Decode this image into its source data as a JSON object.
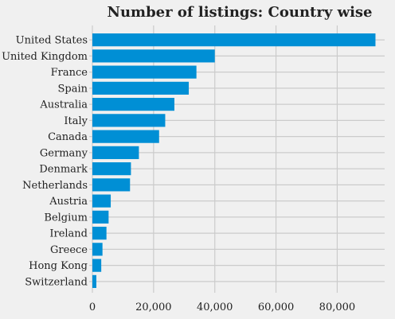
{
  "chart_data": {
    "type": "bar",
    "orientation": "horizontal",
    "title": "Number of listings: Country wise",
    "xlabel": "",
    "ylabel": "",
    "categories": [
      "United States",
      "United Kingdom",
      "France",
      "Spain",
      "Australia",
      "Italy",
      "Canada",
      "Germany",
      "Denmark",
      "Netherlands",
      "Austria",
      "Belgium",
      "Ireland",
      "Greece",
      "Hong Kong",
      "Switzerland"
    ],
    "values": [
      92500,
      40000,
      34000,
      31500,
      26800,
      23800,
      21800,
      15200,
      12600,
      12300,
      6000,
      5300,
      4600,
      3300,
      2900,
      1300
    ],
    "xlim": [
      0,
      95500
    ],
    "xticks": [
      0,
      20000,
      40000,
      60000,
      80000
    ],
    "xtick_labels": [
      "0",
      "20,000",
      "40,000",
      "60,000",
      "80,000"
    ],
    "grid": true,
    "legend": "none",
    "bar_color": "#008fd5",
    "grid_color": "#cbcbcb",
    "background_color": "#f0f0f0"
  }
}
